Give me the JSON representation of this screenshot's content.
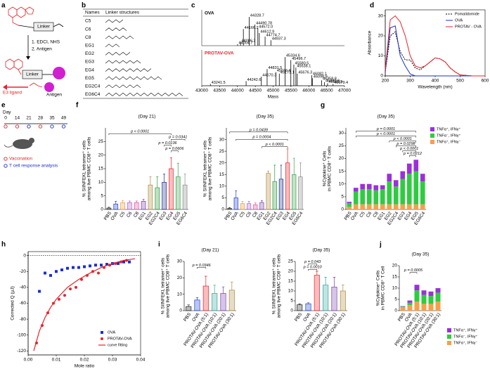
{
  "panel_labels": [
    "a",
    "b",
    "c",
    "d",
    "e",
    "f",
    "g",
    "h",
    "i",
    "j"
  ],
  "scheme_a": {
    "linker_top": "Linker",
    "step_1": "1. EDCI, NHS",
    "step_2": "2. Antigen",
    "linker_bottom": "Linker",
    "e3_ligand": "E3 ligand",
    "antigen": "Antigen"
  },
  "table_b": {
    "headers": [
      "Names",
      "Linker structures"
    ],
    "rows": [
      "C5",
      "C6",
      "C8",
      "EG1",
      "EG2",
      "EG3",
      "EG4",
      "EG5",
      "EG2C4",
      "EG6C4"
    ]
  },
  "timeline_e": {
    "axis_label": "Day",
    "days": [
      "0",
      "14",
      "21",
      "28",
      "35",
      "49"
    ],
    "legend": [
      "Vaccination",
      "T cell response analysis"
    ]
  },
  "chart_data": [
    {
      "type": "spectrum",
      "xlabel": "Mass",
      "xlim": [
        43000,
        47000
      ],
      "xticks": [
        43000,
        43500,
        44000,
        44500,
        45000,
        45500,
        46000,
        46500,
        47000
      ],
      "ylim": [
        0,
        100
      ],
      "series": [
        {
          "name": "OVA",
          "name_color": "#000000",
          "color": "#000000",
          "x": [
            44328.7,
            44490.78,
            44166.2,
            44572.0,
            44612.9,
            44774.7,
            44937.3,
            44086.2,
            44004.7
          ],
          "values": [
            95,
            70,
            55,
            58,
            42,
            30,
            18,
            12,
            5
          ],
          "peak_labels": [
            "44328.7",
            "44490.78",
            "44166.2",
            "44572.0",
            "44612.9",
            "44774.7",
            "44937.3",
            "44086.2",
            "44004.7"
          ]
        },
        {
          "name": "PROTAV-OVA",
          "name_color": "#e8232a",
          "color": "#000000",
          "x": [
            45334.6,
            45496.7,
            44831.5,
            45580.5,
            45638.1,
            45076.6,
            45173.1,
            45676.3,
            46082.1,
            44670.3,
            46098.9,
            44242.6,
            46358.8,
            46440.9,
            46525.5,
            46679.4,
            43241.5
          ],
          "values": [
            95,
            85,
            55,
            70,
            60,
            45,
            40,
            40,
            35,
            30,
            25,
            15,
            18,
            12,
            8,
            6,
            6
          ],
          "peak_labels": [
            "45334.6",
            "45496.7",
            "44831.5",
            "45580.5",
            "45638.1",
            "45076.6",
            "45173.1",
            "45676.3",
            "46082.1",
            "44670.3",
            "46098.9",
            "44242.6",
            "46358.8",
            "46440.9",
            "46525.5",
            "46679.4",
            "43241.5"
          ]
        }
      ]
    },
    {
      "type": "line",
      "xlabel": "Wavelength (nm)",
      "ylabel": "Absorbance",
      "xlim": [
        200,
        600
      ],
      "xticks": [
        200,
        300,
        400,
        500,
        600
      ],
      "ylim": [
        0,
        33
      ],
      "yticks": [
        0,
        10,
        20,
        30
      ],
      "legend": "upper right",
      "x": [
        200,
        220,
        240,
        260,
        280,
        300,
        320,
        340,
        360,
        380,
        400,
        420,
        440,
        460,
        480,
        500,
        550,
        600
      ],
      "series": [
        {
          "name": "Pomalidomide",
          "color": "#000000",
          "dash": "dashed",
          "values": [
            2,
            20,
            22,
            12,
            8,
            8,
            4,
            3,
            5,
            7,
            9,
            8.5,
            7,
            4,
            2,
            0.5,
            0,
            0
          ]
        },
        {
          "name": "OVA",
          "color": "#1a2fd0",
          "dash": "solid",
          "values": [
            2,
            24,
            25,
            10,
            5,
            1,
            0,
            0,
            0,
            0,
            0,
            0,
            0,
            0,
            0,
            0,
            0,
            0
          ]
        },
        {
          "name": "PROTAV - OVA",
          "color": "#e8232a",
          "dash": "solid",
          "values": [
            3,
            28,
            30,
            27,
            20,
            10,
            5,
            4,
            5,
            7,
            9,
            8.5,
            7,
            4,
            2,
            0.5,
            0,
            0
          ]
        }
      ]
    },
    {
      "type": "bar",
      "title": "(Day 21)",
      "ylabel": [
        "% SIINFEKL tetramer⁺ cells",
        "among live PBMC CD8⁺ T cells"
      ],
      "categories": [
        "PBS",
        "OVA",
        "C5",
        "C6",
        "C8",
        "EG1",
        "EG2",
        "EG2C4",
        "EG3",
        "EG4",
        "EG5",
        "EG6C4"
      ],
      "values": [
        0.5,
        2,
        2.5,
        2.5,
        2.5,
        3,
        9,
        8,
        10,
        15,
        12,
        9
      ],
      "errors": [
        0.3,
        1,
        0.8,
        0.6,
        0.6,
        0.8,
        3,
        4,
        3,
        4,
        5,
        4
      ],
      "colors": [
        "#222222",
        "#1f3fd1",
        "#f39c34",
        "#b060d0",
        "#e64fa0",
        "#7a3fb0",
        "#b08a3e",
        "#2a9a3a",
        "#1a2a8a",
        "#e8232a",
        "#3aa04a",
        "#888888"
      ],
      "ylim": [
        0,
        30
      ],
      "yticks": [
        0,
        5,
        10,
        15,
        20,
        25
      ],
      "annotations": [
        "p < 0.0001",
        "p = 0.0341",
        "p = 0.0136",
        "p = 0.0606"
      ]
    },
    {
      "type": "bar",
      "title": "(Day 35)",
      "ylabel": [
        "% SIINFEKL tetramer⁺ cells",
        "among live PBMC CD8⁺ T cells"
      ],
      "categories": [
        "PBS",
        "OVA",
        "C5",
        "C6",
        "C8",
        "EG1",
        "EG2",
        "EG2C4",
        "EG3",
        "EG4",
        "EG5",
        "EG6C4"
      ],
      "values": [
        0.5,
        5,
        2.5,
        2.5,
        2,
        3,
        15.5,
        12,
        13,
        20,
        15,
        14
      ],
      "errors": [
        0.3,
        3,
        1,
        1,
        0.8,
        0.8,
        1,
        7,
        6,
        6,
        7,
        6
      ],
      "colors": [
        "#222222",
        "#1f3fd1",
        "#f39c34",
        "#b060d0",
        "#e64fa0",
        "#7a3fb0",
        "#b08a3e",
        "#2a9a3a",
        "#1a2a8a",
        "#e8232a",
        "#3aa04a",
        "#888888"
      ],
      "ylim": [
        0,
        35
      ],
      "yticks": [
        0,
        5,
        10,
        15,
        20,
        25,
        30
      ],
      "annotations": [
        "p = 0.0439",
        "p = 0.0004",
        "p < 0.0001"
      ]
    },
    {
      "type": "stacked_bar",
      "title": "(Day 35)",
      "ylabel": [
        "%Cytokine⁺ Cells",
        "in PBMC CD8⁺ T cells"
      ],
      "categories": [
        "PBS",
        "OVA",
        "C5",
        "C6",
        "C8",
        "EG1",
        "EG2",
        "EG2C4",
        "EG3",
        "EG4",
        "EG5",
        "EG6C4"
      ],
      "series": [
        {
          "name": "TNFα⁺, IFNγ⁺",
          "color": "#9b30d9",
          "values": [
            0.5,
            1.5,
            2,
            2,
            2,
            1.5,
            3,
            2.5,
            3,
            4,
            4.5,
            3
          ]
        },
        {
          "name": "TNFα⁻, IFNγ⁺",
          "color": "#2ecc40",
          "values": [
            1.5,
            5,
            6,
            6,
            5.5,
            6,
            9,
            7,
            10,
            12,
            13,
            9
          ]
        },
        {
          "name": "TNFα⁺, IFNγ⁻",
          "color": "#f5a04a",
          "values": [
            1,
            2,
            2,
            2,
            2,
            2,
            2,
            2,
            2,
            2,
            2,
            2
          ]
        }
      ],
      "legend": "right-top",
      "ylim": [
        0,
        32
      ],
      "yticks": [
        0,
        5,
        10,
        15,
        20,
        25,
        30
      ],
      "annotations": [
        "p = 0.0001",
        "p < 0.0001",
        "p < 0.0001",
        "p = 0.0298",
        "p < 0.0001",
        "p = 0.0212"
      ]
    },
    {
      "type": "scatter",
      "xlabel": "Mole ratio",
      "ylabel": "Corrected Q (µJ)",
      "xlim": [
        0,
        0.04
      ],
      "xticks": [
        {
          "value": 0,
          "label": "0.00"
        },
        0.01,
        0.02,
        0.03,
        0.04
      ],
      "ylim": [
        -125,
        5
      ],
      "yticks": [
        -120,
        -100,
        -80,
        -60,
        -40,
        -20,
        0
      ],
      "zero_line": true,
      "legend": "lower right",
      "series": [
        {
          "name": "OVA",
          "color": "#1a2fd0",
          "marker": "square",
          "x": [
            0.004,
            0.006,
            0.008,
            0.01,
            0.012,
            0.014,
            0.016,
            0.018,
            0.02,
            0.022,
            0.024,
            0.026,
            0.028,
            0.03,
            0.032,
            0.034,
            0.036
          ],
          "values": [
            -45,
            -22,
            -25,
            -20,
            -18,
            -16,
            -15,
            -15,
            -14,
            -13,
            -12,
            -12,
            -11,
            -10,
            -10,
            -8,
            -8
          ]
        },
        {
          "name": "PROTAV-OVA",
          "color": "#e8232a",
          "marker": "circle",
          "x": [
            0.003,
            0.005,
            0.007,
            0.009,
            0.011,
            0.013,
            0.015,
            0.017,
            0.019,
            0.021,
            0.023,
            0.025,
            0.027,
            0.029,
            0.031,
            0.033,
            0.035
          ],
          "values": [
            -110,
            -88,
            -72,
            -60,
            -55,
            -50,
            -42,
            -40,
            -30,
            -25,
            -20,
            -22,
            -15,
            -12,
            -10,
            -8,
            -6
          ]
        },
        {
          "name": "curve fitting",
          "color": "#e8232a",
          "marker": "line",
          "x": [
            0.002,
            0.004,
            0.006,
            0.008,
            0.01,
            0.014,
            0.018,
            0.022,
            0.026,
            0.03,
            0.034,
            0.038
          ],
          "values": [
            -120,
            -95,
            -78,
            -65,
            -55,
            -40,
            -30,
            -22,
            -15,
            -10,
            -6,
            -4
          ]
        }
      ]
    },
    {
      "type": "bar",
      "title": "(Day 21)",
      "ylabel": [
        "% SIINFEKL tetramer⁺ cells",
        "among live PBMC CD8⁺ T cells"
      ],
      "categories": [
        "PBS",
        "OVA",
        "PROTAV-OVA (5:1)",
        "PROTAV-OVA (10:1)",
        "PROTAV-OVA (20:1)",
        "PROTAV-OVA (30:1)"
      ],
      "values": [
        2.5,
        6.5,
        15,
        10.5,
        10.5,
        12.5
      ],
      "errors": [
        1,
        1.5,
        6,
        5,
        4,
        5
      ],
      "colors": [
        "#222222",
        "#1f3fd1",
        "#e8232a",
        "#2aa59a",
        "#7a3fb0",
        "#b08a3e"
      ],
      "ylim": [
        0,
        30
      ],
      "yticks": [
        0,
        10,
        20,
        30
      ],
      "annotations": [
        "p = 0.0346"
      ]
    },
    {
      "type": "bar",
      "title": "(Day 35)",
      "ylabel": [
        "% SIINFEKL tetramer⁺ cells",
        "among live PBMC CD8⁺ T cells"
      ],
      "categories": [
        "PBS",
        "OVA",
        "PROTAV-OVA (5:1)",
        "PROTAV-OVA (10:1)",
        "PROTAV-OVA (20:1)",
        "PROTAV-OVA (30:1)"
      ],
      "values": [
        3,
        3.5,
        18,
        13,
        12,
        10
      ],
      "errors": [
        0.5,
        0.5,
        2,
        4,
        5,
        3
      ],
      "colors": [
        "#222222",
        "#1f3fd1",
        "#e8232a",
        "#2aa59a",
        "#7a3fb0",
        "#b08a3e"
      ],
      "ylim": [
        0,
        25
      ],
      "yticks": [
        0,
        5,
        10,
        15,
        20,
        25
      ],
      "annotations": [
        "p = 0.043",
        "p = 0.0010"
      ]
    },
    {
      "type": "stacked_bar",
      "title": "(Day 35)",
      "ylabel": [
        "%Cytokine⁺ Cells",
        "in PBMC CD8⁺ T Cell"
      ],
      "categories": [
        "PBS",
        "OVA",
        "PROTAV-OVA (5:1)",
        "PROTAV-OVA (10:1)",
        "PROTAV-OVA (20:1)",
        "PROTAV-OVA (30:1)"
      ],
      "series": [
        {
          "name": "TNFα⁺, IFNγ⁺",
          "color": "#9b30d9",
          "values": [
            0.2,
            1,
            2.5,
            2,
            2,
            2
          ]
        },
        {
          "name": "TNFα⁻, IFNγ⁺",
          "color": "#2ecc40",
          "values": [
            0.3,
            1,
            5,
            4,
            3.5,
            4
          ]
        },
        {
          "name": "TNFα⁺, IFNγ⁻",
          "color": "#f5a04a",
          "values": [
            1.5,
            2.5,
            4,
            3,
            3,
            4
          ]
        }
      ],
      "legend": "right-bottom",
      "ylim": [
        0,
        20
      ],
      "yticks": [
        0,
        5,
        10,
        15,
        20
      ],
      "annotations": [
        "p = 0.0005"
      ]
    }
  ]
}
